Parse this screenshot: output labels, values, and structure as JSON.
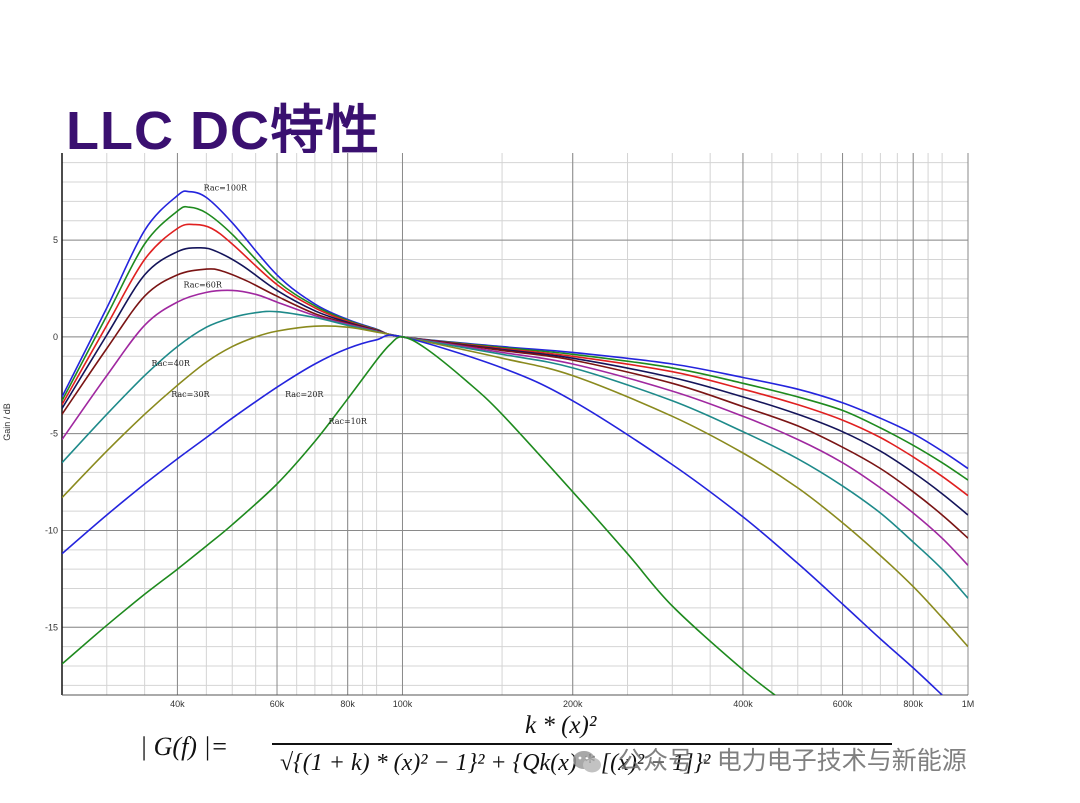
{
  "slide": {
    "title": "LLC DC特性"
  },
  "formula": {
    "lhs": "| G(f) |=",
    "numerator": "k * (x)²",
    "denominator": "√{(1 + k) * (x)² − 1}² + {Qk(x) * [(x)² − 1]}²"
  },
  "watermark": {
    "text": "公众号 · 电力电子技术与新能源"
  },
  "colors": {
    "title": "#3a1070",
    "grid_major": "#8a8a8a",
    "grid_minor": "#d4d4d4"
  },
  "chart_data": {
    "type": "line",
    "xscale": "log",
    "ylabel": "Gain / dB",
    "xlim": [
      25000,
      1000000
    ],
    "ylim": [
      -18.5,
      9.5
    ],
    "xticks": [
      {
        "value": 40000,
        "label": "40k"
      },
      {
        "value": 60000,
        "label": "60k"
      },
      {
        "value": 80000,
        "label": "80k"
      },
      {
        "value": 100000,
        "label": "100k"
      },
      {
        "value": 200000,
        "label": "200k"
      },
      {
        "value": 400000,
        "label": "400k"
      },
      {
        "value": 600000,
        "label": "600k"
      },
      {
        "value": 800000,
        "label": "800k"
      },
      {
        "value": 1000000,
        "label": "1M"
      }
    ],
    "yticks": [
      {
        "value": 5,
        "label": "5"
      },
      {
        "value": 0,
        "label": "0"
      },
      {
        "value": -5,
        "label": "-5"
      },
      {
        "value": -10,
        "label": "-10"
      },
      {
        "value": -15,
        "label": "-15"
      }
    ],
    "grid": true,
    "series": [
      {
        "name": "Rac=100R",
        "color": "#2424dd",
        "x": [
          25000,
          30000,
          35000,
          40000,
          42000,
          45000,
          50000,
          60000,
          70000,
          80000,
          90000,
          100000,
          150000,
          200000,
          300000,
          400000,
          500000,
          600000,
          700000,
          800000,
          900000,
          1000000
        ],
        "y": [
          -3.1,
          1.5,
          5.5,
          7.3,
          7.5,
          7.2,
          5.9,
          3.2,
          1.7,
          0.9,
          0.4,
          0,
          -0.5,
          -0.8,
          -1.4,
          -2.1,
          -2.7,
          -3.4,
          -4.2,
          -5.0,
          -5.9,
          -6.8
        ]
      },
      {
        "name": "",
        "color": "#1e8a1e",
        "x": [
          25000,
          30000,
          35000,
          40000,
          42000,
          45000,
          50000,
          60000,
          70000,
          80000,
          90000,
          100000,
          150000,
          200000,
          300000,
          400000,
          500000,
          600000,
          700000,
          800000,
          900000,
          1000000
        ],
        "y": [
          -3.3,
          1.1,
          4.8,
          6.5,
          6.7,
          6.4,
          5.3,
          2.9,
          1.6,
          0.85,
          0.38,
          0,
          -0.55,
          -0.9,
          -1.6,
          -2.4,
          -3.1,
          -3.8,
          -4.7,
          -5.6,
          -6.5,
          -7.4
        ]
      },
      {
        "name": "",
        "color": "#e02020",
        "x": [
          25000,
          30000,
          35000,
          40000,
          43000,
          46000,
          50000,
          60000,
          70000,
          80000,
          90000,
          100000,
          150000,
          200000,
          300000,
          400000,
          500000,
          600000,
          700000,
          800000,
          900000,
          1000000
        ],
        "y": [
          -3.5,
          0.6,
          4.0,
          5.6,
          5.8,
          5.6,
          4.8,
          2.7,
          1.5,
          0.8,
          0.36,
          0,
          -0.6,
          -1.0,
          -1.8,
          -2.7,
          -3.5,
          -4.3,
          -5.2,
          -6.2,
          -7.2,
          -8.2
        ]
      },
      {
        "name": "",
        "color": "#14145a",
        "x": [
          25000,
          30000,
          35000,
          40000,
          44000,
          47000,
          52000,
          60000,
          70000,
          80000,
          90000,
          100000,
          150000,
          200000,
          300000,
          400000,
          500000,
          600000,
          700000,
          800000,
          900000,
          1000000
        ],
        "y": [
          -3.7,
          0.1,
          3.2,
          4.4,
          4.6,
          4.4,
          3.7,
          2.4,
          1.35,
          0.75,
          0.34,
          0,
          -0.65,
          -1.1,
          -2.1,
          -3.1,
          -4.0,
          -4.9,
          -5.9,
          -7.0,
          -8.1,
          -9.2
        ]
      },
      {
        "name": "",
        "color": "#7a1414",
        "x": [
          25000,
          30000,
          35000,
          40000,
          45000,
          48000,
          53000,
          60000,
          70000,
          80000,
          90000,
          100000,
          150000,
          200000,
          300000,
          400000,
          500000,
          600000,
          700000,
          800000,
          900000,
          1000000
        ],
        "y": [
          -4.0,
          -0.6,
          2.1,
          3.2,
          3.5,
          3.4,
          2.9,
          2.1,
          1.2,
          0.7,
          0.32,
          0,
          -0.7,
          -1.2,
          -2.4,
          -3.6,
          -4.6,
          -5.7,
          -6.8,
          -8.0,
          -9.2,
          -10.4
        ]
      },
      {
        "name": "Rac=60R",
        "color": "#a028a0",
        "x": [
          25000,
          30000,
          35000,
          40000,
          45000,
          50000,
          55000,
          60000,
          70000,
          80000,
          90000,
          100000,
          150000,
          200000,
          300000,
          400000,
          500000,
          600000,
          700000,
          800000,
          900000,
          1000000
        ],
        "y": [
          -5.3,
          -2.0,
          0.6,
          1.8,
          2.3,
          2.4,
          2.2,
          1.8,
          1.1,
          0.65,
          0.3,
          0,
          -0.8,
          -1.4,
          -2.8,
          -4.1,
          -5.3,
          -6.5,
          -7.8,
          -9.1,
          -10.4,
          -11.8
        ]
      },
      {
        "name": "Rac=40R",
        "color": "#1e8a8a",
        "x": [
          25000,
          30000,
          35000,
          40000,
          45000,
          50000,
          55000,
          60000,
          70000,
          80000,
          90000,
          100000,
          150000,
          200000,
          300000,
          400000,
          500000,
          600000,
          700000,
          800000,
          900000,
          1000000
        ],
        "y": [
          -6.5,
          -4.0,
          -2.0,
          -0.5,
          0.5,
          1.0,
          1.25,
          1.3,
          1.0,
          0.6,
          0.28,
          0,
          -0.9,
          -1.6,
          -3.3,
          -4.9,
          -6.3,
          -7.7,
          -9.1,
          -10.6,
          -12.0,
          -13.5
        ]
      },
      {
        "name": "Rac=30R",
        "color": "#8a8a1e",
        "x": [
          25000,
          30000,
          35000,
          40000,
          45000,
          50000,
          55000,
          60000,
          70000,
          80000,
          90000,
          100000,
          150000,
          200000,
          300000,
          400000,
          500000,
          600000,
          700000,
          800000,
          900000,
          1000000
        ],
        "y": [
          -8.3,
          -5.9,
          -4.0,
          -2.5,
          -1.3,
          -0.5,
          0.0,
          0.3,
          0.55,
          0.5,
          0.25,
          0,
          -1.1,
          -2.0,
          -4.1,
          -6.0,
          -7.8,
          -9.6,
          -11.3,
          -12.9,
          -14.5,
          -16.0
        ]
      },
      {
        "name": "Rac=20R",
        "color": "#2424dd",
        "x": [
          25000,
          30000,
          35000,
          40000,
          45000,
          50000,
          60000,
          70000,
          80000,
          90000,
          100000,
          150000,
          200000,
          300000,
          400000,
          500000,
          600000,
          700000,
          800000,
          900000
        ],
        "y": [
          -11.2,
          -9.2,
          -7.6,
          -6.3,
          -5.2,
          -4.2,
          -2.6,
          -1.4,
          -0.6,
          -0.15,
          0,
          -1.6,
          -3.3,
          -6.6,
          -9.3,
          -11.7,
          -13.8,
          -15.6,
          -17.1,
          -18.5
        ]
      },
      {
        "name": "Rac=10R",
        "color": "#1e8a1e",
        "x": [
          25000,
          30000,
          35000,
          40000,
          45000,
          50000,
          60000,
          70000,
          80000,
          90000,
          95000,
          100000,
          110000,
          130000,
          150000,
          200000,
          250000,
          300000,
          400000,
          470000
        ],
        "y": [
          -16.9,
          -14.9,
          -13.3,
          -12.0,
          -10.8,
          -9.7,
          -7.6,
          -5.4,
          -3.2,
          -1.2,
          -0.4,
          0,
          -0.6,
          -2.3,
          -4.0,
          -8.0,
          -11.2,
          -13.9,
          -17.2,
          -18.8
        ]
      }
    ],
    "annotations": [
      {
        "text": "Rac=100R",
        "x": 44500,
        "y": 7.55
      },
      {
        "text": "Rac=60R",
        "x": 41000,
        "y": 2.55
      },
      {
        "text": "Rac=40R",
        "x": 36000,
        "y": -1.5
      },
      {
        "text": "Rac=30R",
        "x": 39000,
        "y": -3.1
      },
      {
        "text": "Rac=20R",
        "x": 62000,
        "y": -3.1
      },
      {
        "text": "Rac=10R",
        "x": 74000,
        "y": -4.5
      }
    ]
  }
}
